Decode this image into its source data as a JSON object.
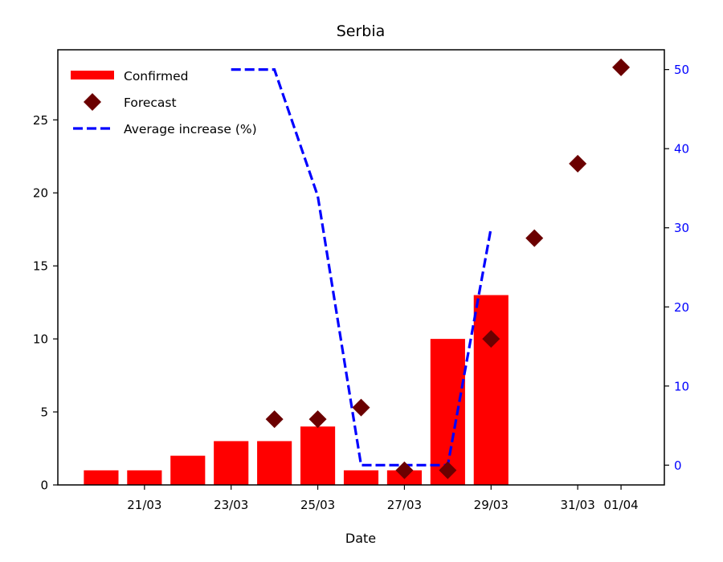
{
  "chart_data": {
    "type": "bar",
    "title": "Serbia",
    "xlabel": "Date",
    "ylabel": "",
    "ylim": [
      0,
      29.8
    ],
    "y2lim": [
      -2.5,
      52.5
    ],
    "x_range": [
      "19/03",
      "02/04"
    ],
    "yticks": [
      0,
      5,
      10,
      15,
      20,
      25
    ],
    "y2ticks": [
      0,
      10,
      20,
      30,
      40,
      50
    ],
    "xticks": [
      "21/03",
      "23/03",
      "25/03",
      "27/03",
      "29/03",
      "31/03",
      "01/04"
    ],
    "legend_position": "top-left",
    "series": [
      {
        "name": "Confirmed",
        "kind": "bar",
        "color": "#ff0000",
        "x": [
          "20/03",
          "21/03",
          "22/03",
          "23/03",
          "24/03",
          "25/03",
          "26/03",
          "27/03",
          "28/03",
          "29/03"
        ],
        "values": [
          1,
          1,
          2,
          3,
          3,
          4,
          1,
          1,
          10,
          13
        ]
      },
      {
        "name": "Forecast",
        "kind": "scatter",
        "marker": "diamond",
        "color": "#6b0000",
        "x": [
          "24/03",
          "25/03",
          "26/03",
          "27/03",
          "28/03",
          "29/03",
          "30/03",
          "31/03",
          "01/04"
        ],
        "values": [
          4.5,
          4.5,
          5.3,
          1,
          1,
          10,
          16.9,
          22,
          28.6
        ]
      },
      {
        "name": "Average increase (%)",
        "kind": "line",
        "axis": "right",
        "style": "dashed",
        "color": "#0000ff",
        "x": [
          "23/03",
          "24/03",
          "25/03",
          "26/03",
          "27/03",
          "28/03",
          "29/03"
        ],
        "values": [
          50,
          50,
          34,
          0,
          0,
          0,
          30
        ]
      }
    ]
  }
}
